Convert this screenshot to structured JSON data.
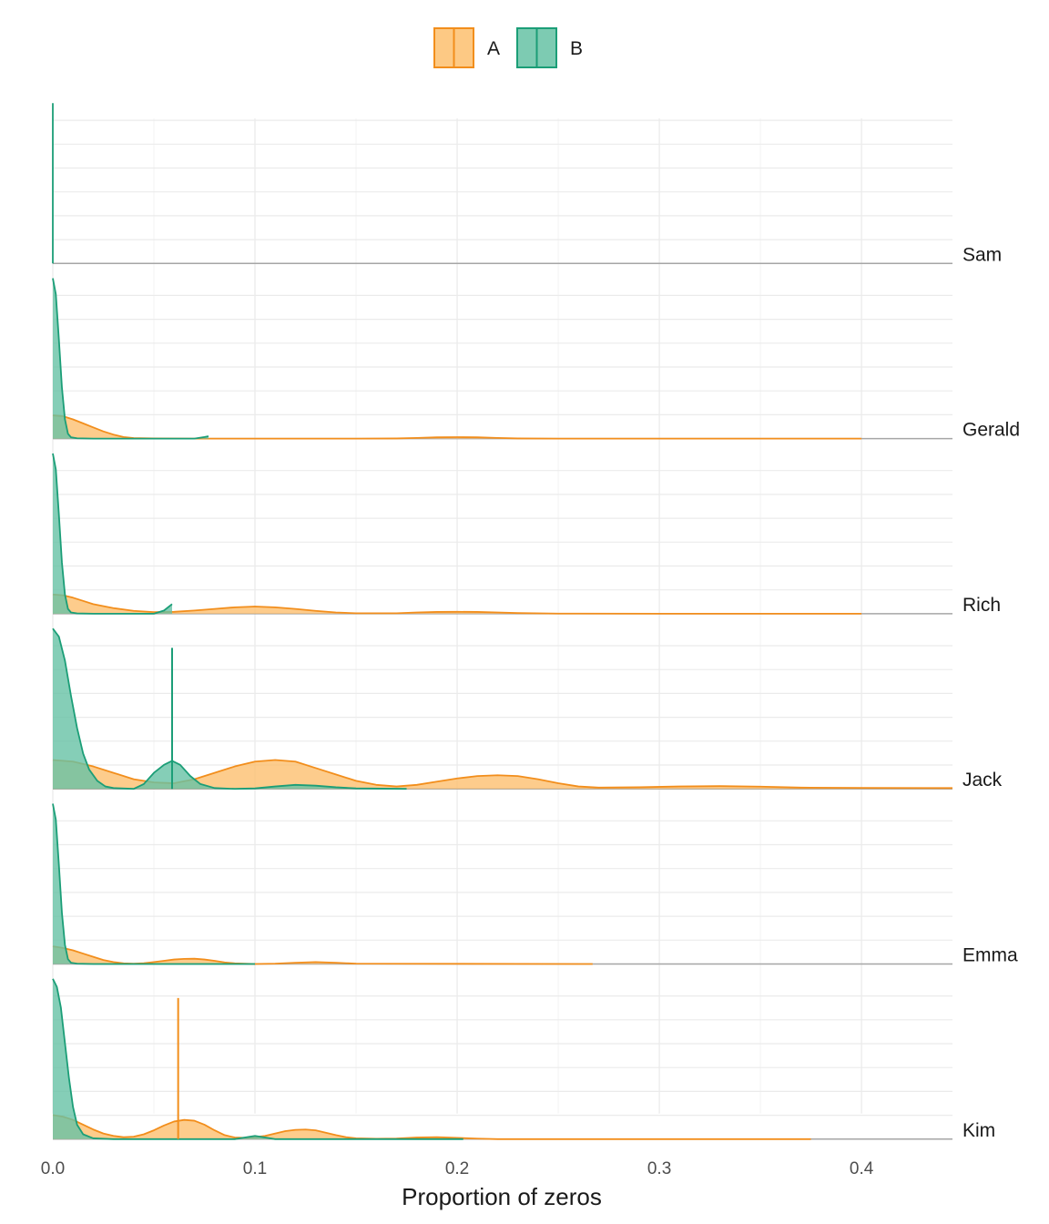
{
  "chart_data": {
    "type": "area",
    "subtype": "stacked-density-ridges",
    "xlabel": "Proportion of zeros",
    "xlim": [
      0,
      0.445
    ],
    "x_ticks": [
      0.0,
      0.1,
      0.2,
      0.3,
      0.4
    ],
    "x_tick_labels": [
      "0.0",
      "0.1",
      "0.2",
      "0.3",
      "0.4"
    ],
    "grid": true,
    "legend": {
      "position": "top",
      "entries": [
        {
          "key": "A",
          "label": "A",
          "fill": "#fdbf6f",
          "stroke": "#f28e1c"
        },
        {
          "key": "B",
          "label": "B",
          "fill": "#66c2a5",
          "stroke": "#1b9e77"
        }
      ]
    },
    "panels": [
      {
        "name": "Sam",
        "ylim": [
          0,
          1
        ],
        "series": [
          {
            "name": "B",
            "x": [
              0.0,
              0.0
            ],
            "y": [
              0,
              1.0
            ],
            "spike": true
          }
        ],
        "vlines": []
      },
      {
        "name": "Gerald",
        "ylim": [
          0,
          1
        ],
        "series": [
          {
            "name": "A",
            "range": [
              0.0,
              0.4
            ],
            "x": [
              0.0,
              0.005,
              0.01,
              0.015,
              0.02,
              0.025,
              0.03,
              0.035,
              0.04,
              0.05,
              0.07,
              0.1,
              0.15,
              0.17,
              0.18,
              0.19,
              0.2,
              0.21,
              0.22,
              0.23,
              0.25,
              0.3,
              0.4
            ],
            "y": [
              0.145,
              0.14,
              0.12,
              0.095,
              0.07,
              0.045,
              0.025,
              0.01,
              0.003,
              0.001,
              0.0,
              0.0,
              0.0,
              0.001,
              0.004,
              0.008,
              0.009,
              0.008,
              0.004,
              0.001,
              0.0,
              0.0,
              0.0
            ]
          },
          {
            "name": "B",
            "range": [
              0.0,
              0.077
            ],
            "x": [
              0.0,
              0.0015,
              0.003,
              0.0045,
              0.006,
              0.0075,
              0.009,
              0.012,
              0.02,
              0.05,
              0.07,
              0.075,
              0.077
            ],
            "y": [
              1.0,
              0.9,
              0.62,
              0.32,
              0.12,
              0.03,
              0.008,
              0.002,
              0.0,
              0.0,
              0.0,
              0.01,
              0.015
            ]
          }
        ],
        "vlines": []
      },
      {
        "name": "Rich",
        "ylim": [
          0,
          1
        ],
        "series": [
          {
            "name": "A",
            "range": [
              0.0,
              0.4
            ],
            "x": [
              0.0,
              0.005,
              0.01,
              0.015,
              0.02,
              0.03,
              0.04,
              0.05,
              0.06,
              0.07,
              0.08,
              0.09,
              0.1,
              0.11,
              0.12,
              0.13,
              0.14,
              0.15,
              0.17,
              0.18,
              0.19,
              0.2,
              0.21,
              0.22,
              0.23,
              0.25,
              0.3,
              0.4
            ],
            "y": [
              0.12,
              0.115,
              0.1,
              0.08,
              0.06,
              0.035,
              0.018,
              0.01,
              0.012,
              0.02,
              0.03,
              0.04,
              0.045,
              0.04,
              0.03,
              0.018,
              0.008,
              0.003,
              0.003,
              0.008,
              0.011,
              0.012,
              0.011,
              0.008,
              0.004,
              0.001,
              0.0,
              0.0
            ]
          },
          {
            "name": "B",
            "range": [
              0.0,
              0.059
            ],
            "x": [
              0.0,
              0.0015,
              0.003,
              0.0045,
              0.006,
              0.0075,
              0.009,
              0.012,
              0.02,
              0.05,
              0.055,
              0.059
            ],
            "y": [
              1.0,
              0.9,
              0.62,
              0.32,
              0.12,
              0.03,
              0.008,
              0.002,
              0.0,
              0.0,
              0.02,
              0.06
            ]
          }
        ],
        "vlines": []
      },
      {
        "name": "Jack",
        "ylim": [
          0,
          1
        ],
        "series": [
          {
            "name": "A",
            "range": [
              0.0,
              0.445
            ],
            "x": [
              0.0,
              0.01,
              0.02,
              0.03,
              0.04,
              0.05,
              0.06,
              0.07,
              0.08,
              0.09,
              0.1,
              0.11,
              0.12,
              0.13,
              0.14,
              0.15,
              0.16,
              0.17,
              0.18,
              0.19,
              0.2,
              0.21,
              0.22,
              0.23,
              0.24,
              0.25,
              0.26,
              0.27,
              0.29,
              0.31,
              0.33,
              0.35,
              0.37,
              0.4,
              0.445
            ],
            "y": [
              0.18,
              0.17,
              0.14,
              0.1,
              0.06,
              0.04,
              0.035,
              0.06,
              0.1,
              0.14,
              0.17,
              0.18,
              0.17,
              0.13,
              0.09,
              0.05,
              0.025,
              0.015,
              0.025,
              0.045,
              0.065,
              0.08,
              0.085,
              0.08,
              0.06,
              0.035,
              0.015,
              0.008,
              0.01,
              0.015,
              0.017,
              0.014,
              0.008,
              0.006,
              0.005
            ]
          },
          {
            "name": "B",
            "range": [
              0.0,
              0.175
            ],
            "x": [
              0.0,
              0.003,
              0.006,
              0.009,
              0.012,
              0.015,
              0.018,
              0.022,
              0.026,
              0.03,
              0.04,
              0.045,
              0.05,
              0.055,
              0.059,
              0.063,
              0.068,
              0.073,
              0.08,
              0.09,
              0.1,
              0.11,
              0.12,
              0.13,
              0.14,
              0.15,
              0.175
            ],
            "y": [
              1.0,
              0.95,
              0.8,
              0.58,
              0.38,
              0.22,
              0.12,
              0.05,
              0.015,
              0.005,
              0.0,
              0.03,
              0.1,
              0.15,
              0.175,
              0.15,
              0.08,
              0.03,
              0.005,
              0.0,
              0.003,
              0.015,
              0.025,
              0.02,
              0.01,
              0.003,
              0.0
            ]
          }
        ],
        "vlines": [
          {
            "series": "B",
            "x": 0.059,
            "height": 0.88
          }
        ]
      },
      {
        "name": "Emma",
        "ylim": [
          0,
          1
        ],
        "series": [
          {
            "name": "A",
            "range": [
              0.0,
              0.267
            ],
            "x": [
              0.0,
              0.005,
              0.01,
              0.015,
              0.02,
              0.025,
              0.03,
              0.035,
              0.04,
              0.045,
              0.05,
              0.055,
              0.06,
              0.065,
              0.07,
              0.075,
              0.08,
              0.085,
              0.09,
              0.1,
              0.11,
              0.12,
              0.13,
              0.14,
              0.15,
              0.267
            ],
            "y": [
              0.11,
              0.1,
              0.085,
              0.065,
              0.045,
              0.025,
              0.012,
              0.004,
              0.002,
              0.005,
              0.012,
              0.02,
              0.028,
              0.032,
              0.033,
              0.028,
              0.02,
              0.01,
              0.004,
              0.0,
              0.002,
              0.008,
              0.012,
              0.008,
              0.002,
              0.0
            ]
          },
          {
            "name": "B",
            "range": [
              0.0,
              0.1
            ],
            "x": [
              0.0,
              0.0015,
              0.003,
              0.0045,
              0.006,
              0.0075,
              0.009,
              0.012,
              0.02,
              0.1
            ],
            "y": [
              1.0,
              0.9,
              0.62,
              0.32,
              0.12,
              0.03,
              0.008,
              0.002,
              0.0,
              0.0
            ]
          }
        ],
        "vlines": []
      },
      {
        "name": "Kim",
        "ylim": [
          0,
          1
        ],
        "series": [
          {
            "name": "A",
            "range": [
              0.0,
              0.375
            ],
            "x": [
              0.0,
              0.005,
              0.01,
              0.015,
              0.02,
              0.025,
              0.03,
              0.035,
              0.04,
              0.045,
              0.05,
              0.055,
              0.06,
              0.065,
              0.07,
              0.075,
              0.08,
              0.085,
              0.09,
              0.095,
              0.1,
              0.105,
              0.11,
              0.115,
              0.12,
              0.125,
              0.13,
              0.135,
              0.14,
              0.145,
              0.15,
              0.16,
              0.17,
              0.18,
              0.19,
              0.2,
              0.21,
              0.22,
              0.375
            ],
            "y": [
              0.15,
              0.14,
              0.12,
              0.09,
              0.06,
              0.035,
              0.02,
              0.012,
              0.015,
              0.03,
              0.055,
              0.085,
              0.11,
              0.12,
              0.115,
              0.09,
              0.055,
              0.025,
              0.01,
              0.008,
              0.012,
              0.02,
              0.035,
              0.05,
              0.058,
              0.06,
              0.055,
              0.04,
              0.025,
              0.012,
              0.005,
              0.002,
              0.004,
              0.01,
              0.012,
              0.008,
              0.003,
              0.0,
              0.0
            ]
          },
          {
            "name": "B",
            "range": [
              0.0,
              0.203
            ],
            "x": [
              0.0,
              0.002,
              0.004,
              0.006,
              0.008,
              0.01,
              0.012,
              0.015,
              0.02,
              0.03,
              0.09,
              0.095,
              0.1,
              0.105,
              0.11,
              0.12,
              0.203
            ],
            "y": [
              1.0,
              0.95,
              0.82,
              0.6,
              0.38,
              0.2,
              0.09,
              0.03,
              0.005,
              0.0,
              0.0,
              0.01,
              0.02,
              0.01,
              0.0,
              0.0,
              0.0
            ]
          }
        ],
        "vlines": [
          {
            "series": "A",
            "x": 0.062,
            "height": 0.88
          }
        ]
      }
    ]
  }
}
